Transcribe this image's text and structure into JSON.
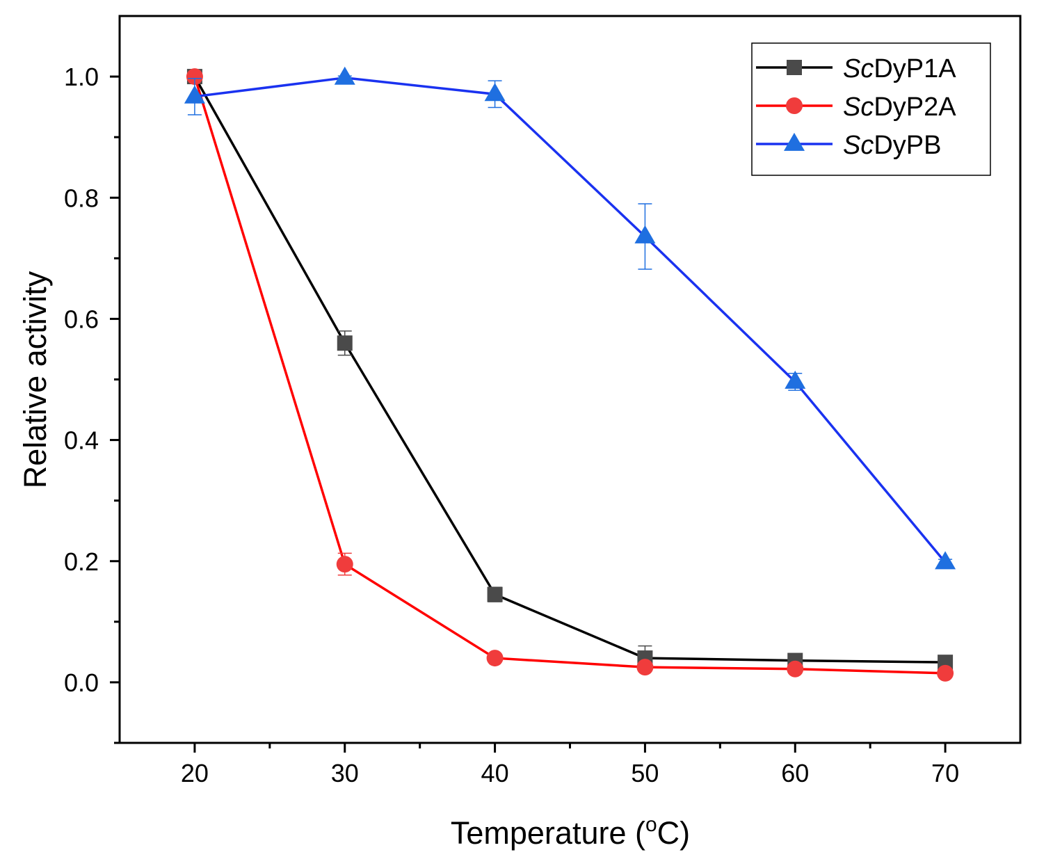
{
  "chart_data": {
    "type": "line",
    "title": "",
    "xlabel": "Temperature (",
    "xlabel_sup": "o",
    "xlabel_end": "C)",
    "ylabel": "Relative activity",
    "xlim": [
      15,
      75
    ],
    "ylim": [
      -0.1,
      1.1
    ],
    "x_ticks": [
      "20",
      "30",
      "40",
      "50",
      "60",
      "70"
    ],
    "y_ticks": [
      "0.0",
      "0.2",
      "0.4",
      "0.6",
      "0.8",
      "1.0"
    ],
    "x": [
      20,
      30,
      40,
      50,
      60,
      70
    ],
    "grid": false,
    "legend_position": "top-right",
    "series": [
      {
        "name": "ScDyP1A",
        "name_italic": "Sc",
        "name_rest": "DyP1A",
        "marker": "square",
        "line_color": "#000000",
        "marker_color": "#4a4a4a",
        "values": [
          1.0,
          0.56,
          0.145,
          0.04,
          0.036,
          0.033
        ],
        "errors": [
          0.0,
          0.02,
          0.012,
          0.02,
          0.003,
          0.003
        ]
      },
      {
        "name": "ScDyP2A",
        "name_italic": "Sc",
        "name_rest": "DyP2A",
        "marker": "circle",
        "line_color": "#ff0000",
        "marker_color": "#f03c3c",
        "values": [
          1.0,
          0.195,
          0.04,
          0.025,
          0.022,
          0.015
        ],
        "errors": [
          0.0,
          0.018,
          0.003,
          0.003,
          0.002,
          0.002
        ]
      },
      {
        "name": "ScDyPB",
        "name_italic": "Sc",
        "name_rest": "DyPB",
        "marker": "triangle",
        "line_color": "#1a32f0",
        "marker_color": "#1f6fe0",
        "values": [
          0.967,
          0.998,
          0.971,
          0.736,
          0.496,
          0.198
        ],
        "errors": [
          0.03,
          0.003,
          0.022,
          0.054,
          0.014,
          0.005
        ]
      }
    ]
  }
}
